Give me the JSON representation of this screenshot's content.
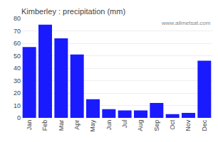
{
  "chart_data": {
    "type": "bar",
    "title": "Kimberley : precipitation (mm)",
    "categories": [
      "Jan",
      "Feb",
      "Mar",
      "Apr",
      "May",
      "Jun",
      "Jul",
      "Aug",
      "Sep",
      "Oct",
      "Nov",
      "Dec"
    ],
    "values": [
      57,
      75,
      64,
      51,
      15,
      7,
      6,
      6,
      12,
      3,
      4,
      46
    ],
    "color": "#1a1aff",
    "ylim": [
      0,
      80
    ],
    "yticks": [
      0,
      10,
      20,
      30,
      40,
      50,
      60,
      70,
      80
    ],
    "grid": true,
    "annotations": [
      "www.allmetsat.com"
    ]
  }
}
